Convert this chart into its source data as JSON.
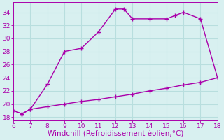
{
  "line1_x": [
    6,
    6.5,
    7,
    8,
    9,
    10,
    11,
    12,
    12.5,
    13,
    14,
    15,
    15.5,
    16,
    17,
    18
  ],
  "line1_y": [
    19.0,
    18.5,
    19.2,
    23.0,
    28.0,
    28.5,
    31.0,
    34.5,
    34.5,
    33.0,
    33.0,
    33.0,
    33.5,
    34.0,
    33.0,
    24.0
  ],
  "line2_x": [
    6,
    6.5,
    7,
    8,
    9,
    10,
    11,
    12,
    13,
    14,
    15,
    16,
    17,
    18
  ],
  "line2_y": [
    19.0,
    18.5,
    19.2,
    19.6,
    20.0,
    20.4,
    20.7,
    21.1,
    21.5,
    22.0,
    22.4,
    22.9,
    23.3,
    24.0
  ],
  "line_color": "#aa00aa",
  "bg_color": "#d8f0f0",
  "grid_color": "#b8dede",
  "xlabel": "Windchill (Refroidissement éolien,°C)",
  "xlabel_color": "#aa00aa",
  "xlabel_fontsize": 7.5,
  "xlim": [
    6,
    18
  ],
  "ylim": [
    17.5,
    35.5
  ],
  "xticks": [
    6,
    7,
    8,
    9,
    10,
    11,
    12,
    13,
    14,
    15,
    16,
    17,
    18
  ],
  "yticks": [
    18,
    20,
    22,
    24,
    26,
    28,
    30,
    32,
    34
  ],
  "tick_color": "#aa00aa",
  "tick_fontsize": 6.5,
  "marker": "+",
  "marker_size": 4,
  "line_width": 1.0
}
